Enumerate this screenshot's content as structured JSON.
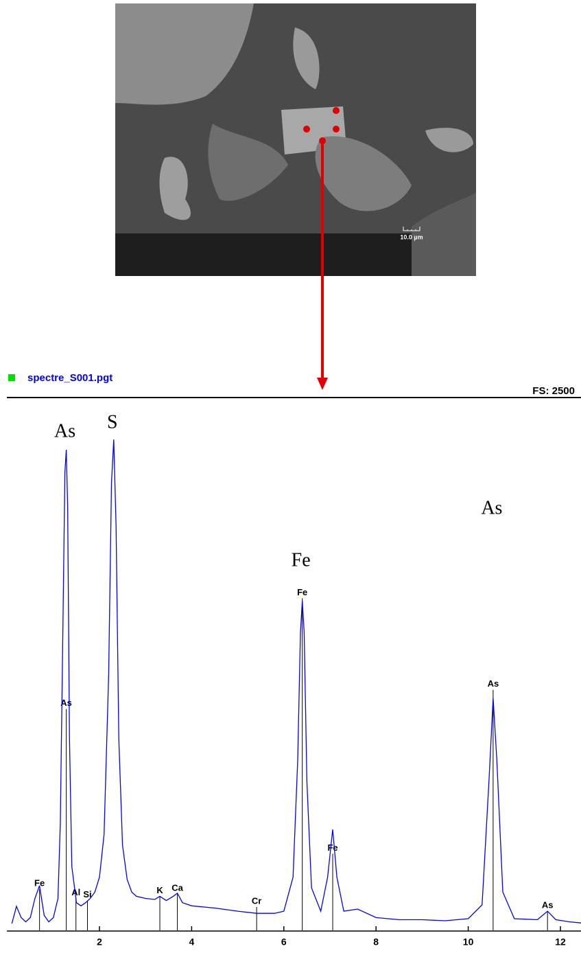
{
  "image": {
    "scale_bar": "10.0 µm"
  },
  "chart_data": {
    "type": "line",
    "full_scale": "FS: 2500",
    "x": [
      0.1,
      0.2,
      0.3,
      0.4,
      0.5,
      0.6,
      0.7,
      0.8,
      0.9,
      1.0,
      1.1,
      1.15,
      1.2,
      1.25,
      1.28,
      1.31,
      1.35,
      1.4,
      1.5,
      1.6,
      1.7,
      1.8,
      1.9,
      2.0,
      2.1,
      2.2,
      2.26,
      2.31,
      2.36,
      2.42,
      2.5,
      2.6,
      2.7,
      2.8,
      3.0,
      3.2,
      3.31,
      3.45,
      3.6,
      3.69,
      3.8,
      4.0,
      4.5,
      5.0,
      5.41,
      5.8,
      6.0,
      6.2,
      6.3,
      6.36,
      6.4,
      6.44,
      6.5,
      6.6,
      6.8,
      6.95,
      7.06,
      7.15,
      7.3,
      7.6,
      8.0,
      8.5,
      9.0,
      9.5,
      10.0,
      10.3,
      10.45,
      10.54,
      10.62,
      10.75,
      11.0,
      11.5,
      11.72,
      11.9,
      12.2,
      12.45
    ],
    "series": [
      {
        "name": "spectre_S001.pgt",
        "color": "#0000ff",
        "legend_color": "#00e000",
        "values": [
          32,
          113,
          60,
          40,
          60,
          150,
          210,
          70,
          40,
          60,
          150,
          500,
          1300,
          2150,
          2258,
          2000,
          900,
          300,
          130,
          115,
          130,
          150,
          180,
          250,
          450,
          1200,
          2100,
          2306,
          1900,
          900,
          400,
          240,
          180,
          160,
          150,
          145,
          160,
          140,
          160,
          175,
          130,
          115,
          105,
          90,
          80,
          80,
          90,
          250,
          800,
          1400,
          1548,
          1400,
          700,
          200,
          90,
          250,
          474,
          250,
          90,
          100,
          60,
          50,
          50,
          45,
          55,
          120,
          700,
          1090,
          800,
          180,
          55,
          50,
          90,
          50,
          40,
          35
        ]
      }
    ],
    "xlim": [
      0,
      12.45
    ],
    "ylim": [
      0,
      2500
    ],
    "xticks": [
      2,
      4,
      6,
      8,
      10,
      12
    ],
    "markers": [
      {
        "label": "Fe",
        "x": 0.7,
        "y": 193
      },
      {
        "label": "As",
        "x": 1.28,
        "y": 1040
      },
      {
        "label": "Al",
        "x": 1.49,
        "y": 150
      },
      {
        "label": "Si",
        "x": 1.74,
        "y": 140
      },
      {
        "label": "K",
        "x": 3.31,
        "y": 160
      },
      {
        "label": "Ca",
        "x": 3.69,
        "y": 170
      },
      {
        "label": "Cr",
        "x": 5.41,
        "y": 110
      },
      {
        "label": "Fe",
        "x": 6.4,
        "y": 1560
      },
      {
        "label": "Fe",
        "x": 7.06,
        "y": 360
      },
      {
        "label": "As",
        "x": 10.54,
        "y": 1130
      },
      {
        "label": "As",
        "x": 11.72,
        "y": 90
      }
    ],
    "annotations": [
      {
        "text": "As",
        "x": 1.28
      },
      {
        "text": "S",
        "x": 2.31
      },
      {
        "text": "Fe",
        "x": 6.4
      },
      {
        "text": "As",
        "x": 10.54
      }
    ]
  }
}
